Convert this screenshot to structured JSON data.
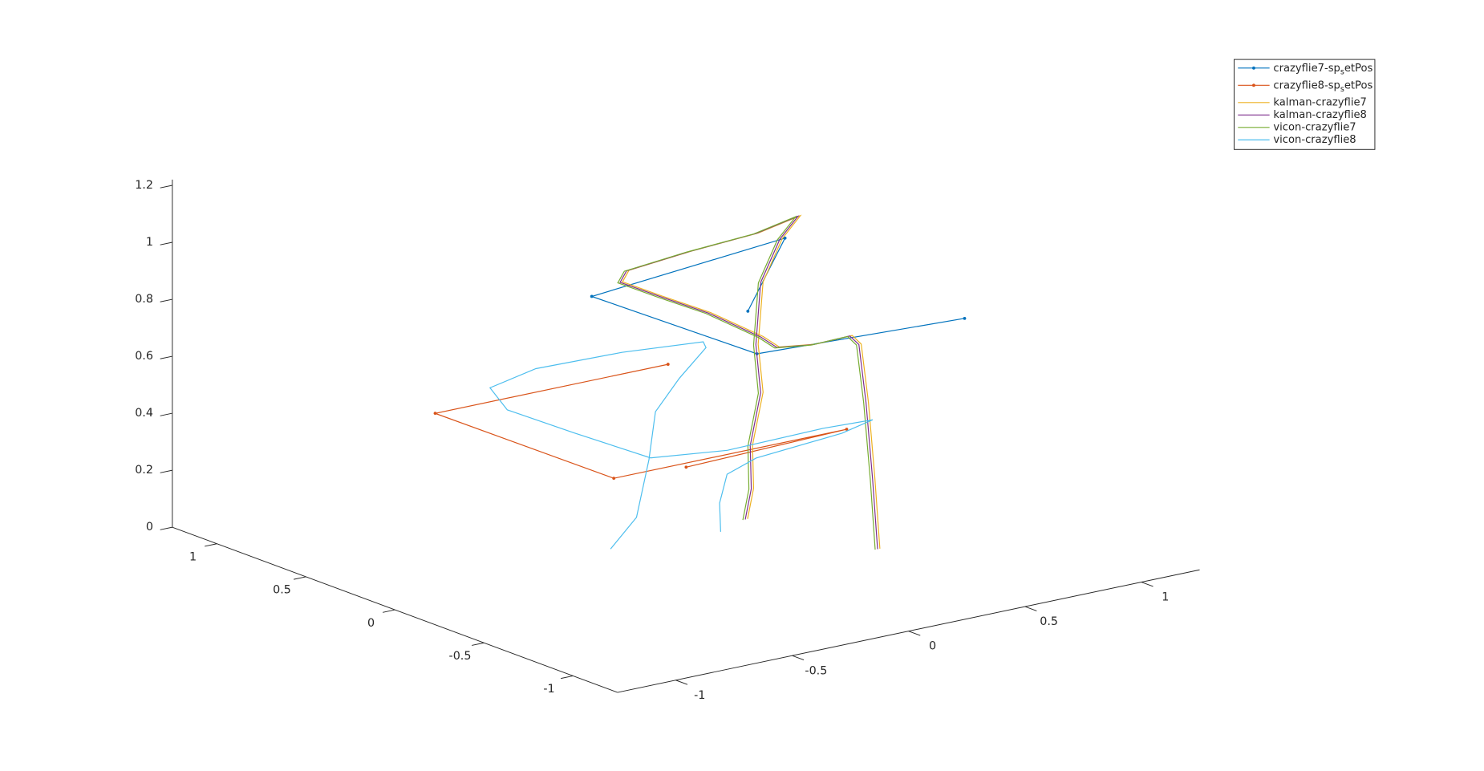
{
  "chart_data": {
    "type": "line3d",
    "xlim": [
      -1.25,
      1.25
    ],
    "ylim": [
      -1.25,
      1.25
    ],
    "zlim": [
      0,
      1.22
    ],
    "xticks": [
      -1,
      -0.5,
      0,
      0.5,
      1
    ],
    "yticks": [
      -1,
      -0.5,
      0,
      0.5,
      1
    ],
    "zticks": [
      0,
      0.2,
      0.4,
      0.6,
      0.8,
      1,
      1.2
    ],
    "legend": "upper right",
    "series": [
      {
        "name": "crazyflie7-sp_setPos",
        "color": "#0072BD",
        "marker": ".",
        "x": [
          0.87,
          0.67,
          -0.29,
          0.58,
          0.99
        ],
        "y": [
          0.79,
          0.32,
          0.15,
          0.36,
          -0.27
        ],
        "z": [
          0.5,
          0.9,
          0.9,
          0.5,
          0.7
        ]
      },
      {
        "name": "crazyflie8-sp_setPos",
        "color": "#D95319",
        "marker": ".",
        "x": [
          0.68,
          -0.32,
          -0.31,
          0.69,
          -0.03
        ],
        "y": [
          0.99,
          0.99,
          0.0,
          0.0,
          -0.04
        ],
        "z": [
          0.3,
          0.3,
          0.3,
          0.3,
          0.3
        ]
      },
      {
        "name": "kalman-crazyflie7",
        "color": "#EDB120",
        "x": [
          0.425,
          0.403,
          0.384,
          0.37,
          0.345,
          0.287,
          0.229,
          0.262,
          0.295,
          0.221,
          0.112,
          0.11,
          0.317,
          0.529,
          0.667,
          0.552,
          0.496,
          0.444,
          0.418,
          0.357,
          0.356,
          0.282
        ],
        "y": [
          -0.533,
          -0.534,
          -0.522,
          -0.5,
          -0.482,
          -0.353,
          -0.225,
          -0.09,
          0.248,
          0.421,
          0.503,
          0.464,
          0.385,
          0.286,
          0.23,
          0.182,
          0.216,
          0.175,
          0.114,
          0.093,
          0.086,
          0.023
        ],
        "z": [
          0.05,
          0.3,
          0.57,
          0.77,
          0.8,
          0.75,
          0.72,
          0.72,
          0.72,
          0.75,
          0.8,
          0.85,
          0.9,
          0.95,
          1.0,
          0.95,
          0.8,
          0.6,
          0.45,
          0.28,
          0.13,
          0.05
        ]
      },
      {
        "name": "kalman-crazyflie8",
        "color": "#7E2F8E",
        "x": [
          0.415,
          0.393,
          0.374,
          0.36,
          0.335,
          0.277,
          0.219,
          0.252,
          0.285,
          0.211,
          0.102,
          0.1,
          0.307,
          0.519,
          0.657,
          0.542,
          0.486,
          0.434,
          0.408,
          0.347,
          0.346,
          0.272
        ],
        "y": [
          -0.533,
          -0.534,
          -0.522,
          -0.5,
          -0.482,
          -0.353,
          -0.225,
          -0.09,
          0.248,
          0.421,
          0.503,
          0.464,
          0.385,
          0.286,
          0.23,
          0.182,
          0.216,
          0.175,
          0.114,
          0.093,
          0.086,
          0.023
        ],
        "z": [
          0.05,
          0.3,
          0.57,
          0.77,
          0.8,
          0.75,
          0.72,
          0.72,
          0.72,
          0.75,
          0.8,
          0.85,
          0.9,
          0.95,
          1.0,
          0.95,
          0.8,
          0.6,
          0.45,
          0.28,
          0.13,
          0.05
        ]
      },
      {
        "name": "vicon-crazyflie7",
        "color": "#77AC30",
        "x": [
          0.405,
          0.383,
          0.364,
          0.35,
          0.325,
          0.267,
          0.209,
          0.242,
          0.275,
          0.201,
          0.092,
          0.09,
          0.297,
          0.509,
          0.647,
          0.532,
          0.476,
          0.424,
          0.398,
          0.337,
          0.336,
          0.262
        ],
        "y": [
          -0.533,
          -0.534,
          -0.522,
          -0.5,
          -0.482,
          -0.353,
          -0.225,
          -0.09,
          0.248,
          0.421,
          0.503,
          0.464,
          0.385,
          0.286,
          0.23,
          0.182,
          0.216,
          0.175,
          0.114,
          0.093,
          0.086,
          0.023
        ],
        "z": [
          0.05,
          0.3,
          0.57,
          0.77,
          0.8,
          0.75,
          0.72,
          0.72,
          0.72,
          0.75,
          0.8,
          0.85,
          0.9,
          0.95,
          1.0,
          0.95,
          0.8,
          0.6,
          0.45,
          0.28,
          0.13,
          0.05
        ]
      },
      {
        "name": "vicon-crazyflie8",
        "color": "#4DBEEE",
        "x": [
          -0.315,
          -0.221,
          -0.182,
          -0.126,
          0.019,
          0.171,
          0.185,
          0.011,
          -0.24,
          -0.402,
          -0.412,
          -0.252,
          -0.109,
          -0.059,
          0.207,
          0.568,
          0.726,
          0.648,
          0.334,
          0.24,
          0.175,
          0.113
        ],
        "y": [
          0.012,
          -0.011,
          -0.03,
          0.007,
          0.062,
          0.111,
          0.145,
          0.374,
          0.529,
          0.575,
          0.465,
          0.299,
          0.19,
          0.122,
          0.039,
          -0.026,
          -0.099,
          -0.029,
          0.043,
          0.083,
          0.04,
          -0.047
        ],
        "z": [
          0.05,
          0.15,
          0.35,
          0.5,
          0.58,
          0.65,
          0.66,
          0.6,
          0.55,
          0.5,
          0.45,
          0.38,
          0.32,
          0.3,
          0.3,
          0.33,
          0.35,
          0.3,
          0.25,
          0.2,
          0.12,
          0.05
        ]
      }
    ]
  }
}
